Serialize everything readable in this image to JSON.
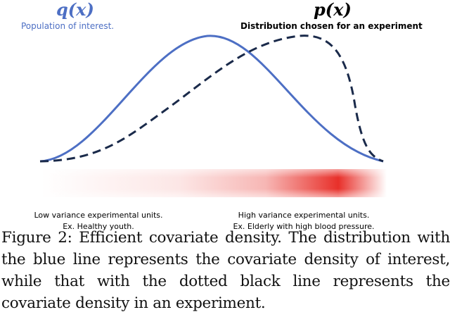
{
  "labels": {
    "q_symbol": "q(x)",
    "q_description": "Population of interest.",
    "p_symbol": "p(x)",
    "p_description": "Distribution chosen for an experiment"
  },
  "gradient": {
    "low_line1": "Low variance experimental units.",
    "low_line2": "Ex. Healthy youth.",
    "high_line1": "High variance experimental units.",
    "high_line2": "Ex. Elderly with high blood pressure.",
    "color": "#e8302a"
  },
  "curves": {
    "q_color": "#4d6fc4",
    "p_color": "#1a2a4a"
  },
  "caption": "Figure 2: Efficient covariate density. The distribution with the blue line represents the covariate density of interest, while that with the dotted black line represents the covariate density in an experiment."
}
